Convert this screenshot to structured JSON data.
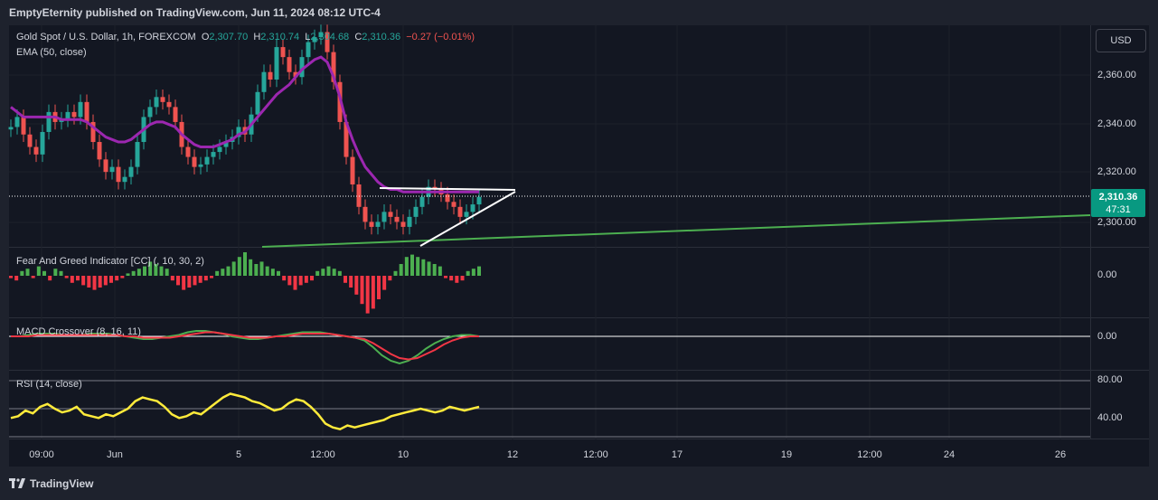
{
  "header": {
    "publisher_line": "EmptyEternity published on TradingView.com, Jun 11, 2024 08:12 UTC-4"
  },
  "symbol": {
    "name": "Gold Spot / U.S. Dollar, 1h, FOREXCOM",
    "o_label": "O",
    "o_value": "2,307.70",
    "h_label": "H",
    "h_value": "2,310.74",
    "l_label": "L",
    "l_value": "2,304.68",
    "c_label": "C",
    "c_value": "2,310.36",
    "change": "−0.27 (−0.01%)"
  },
  "indicators": {
    "ema": "EMA (50, close)",
    "fear_greed": "Fear And Greed Indicator [CC] (, 10, 30, 2)",
    "macd": "MACD Crossover (8, 16, 11)",
    "rsi": "RSI (14, close)"
  },
  "currency_button": "USD",
  "price_axis": {
    "ticks": [
      "2,360.00",
      "2,340.00",
      "2,320.00",
      "2,300.00"
    ],
    "current_price": "2,310.36",
    "countdown": "47:31"
  },
  "pane_axis": {
    "fear_greed_zero": "0.00",
    "macd_zero": "0.00",
    "rsi_high": "80.00",
    "rsi_low": "40.00"
  },
  "time_axis": {
    "labels": [
      "09:00",
      "Jun",
      "5",
      "12:00",
      "10",
      "12",
      "12:00",
      "17",
      "19",
      "12:00",
      "24",
      "26"
    ]
  },
  "footer": {
    "brand": "TradingView"
  },
  "colors": {
    "up": "#26a69a",
    "down": "#ef5350",
    "ema": "#9c27b0",
    "trendline": "#4caf50",
    "rsi": "#ffeb3b",
    "macd_line": "#4caf50",
    "signal_line": "#f23645",
    "fg_positive": "#4caf50",
    "fg_negative": "#f23645",
    "background": "#131722"
  },
  "chart_data": [
    {
      "type": "candlestick",
      "title": "Gold Spot / U.S. Dollar, 1h, FOREXCOM",
      "y_range": [
        2290,
        2378
      ],
      "series": [
        {
          "name": "Gold Spot / U.S. Dollar, 1h, FOREXCOM",
          "close": [
            2338,
            2342,
            2335,
            2330,
            2327,
            2336,
            2344,
            2340,
            2341,
            2344,
            2342,
            2348,
            2340,
            2332,
            2325,
            2320,
            2322,
            2316,
            2318,
            2322,
            2332,
            2342,
            2346,
            2350,
            2348,
            2346,
            2340,
            2330,
            2326,
            2322,
            2323,
            2326,
            2328,
            2330,
            2332,
            2334,
            2338,
            2335,
            2343,
            2352,
            2360,
            2357,
            2370,
            2366,
            2360,
            2358,
            2366,
            2372,
            2374,
            2376,
            2368,
            2356,
            2340,
            2326,
            2315,
            2306,
            2300,
            2298,
            2300,
            2304,
            2302,
            2300,
            2298,
            2302,
            2306,
            2310,
            2314,
            2313,
            2311,
            2308,
            2306,
            2302,
            2304,
            2307,
            2310
          ]
        },
        {
          "name": "EMA (50, close)",
          "values": [
            2346,
            2344,
            2342,
            2342,
            2342,
            2342,
            2342,
            2342,
            2341,
            2341,
            2341,
            2341,
            2340,
            2338,
            2336,
            2334,
            2333,
            2332,
            2332,
            2333,
            2335,
            2337,
            2339,
            2340,
            2340,
            2339,
            2338,
            2335,
            2333,
            2331,
            2330,
            2330,
            2330,
            2331,
            2332,
            2333,
            2335,
            2336,
            2339,
            2342,
            2345,
            2348,
            2351,
            2353,
            2355,
            2358,
            2361,
            2363,
            2365,
            2366,
            2364,
            2358,
            2350,
            2340,
            2333,
            2327,
            2322,
            2319,
            2316,
            2314,
            2313,
            2313,
            2312,
            2312,
            2312,
            2312,
            2312,
            2312,
            2312,
            2312,
            2312,
            2312,
            2312,
            2312,
            2312
          ]
        }
      ]
    },
    {
      "type": "bar",
      "title": "Fear And Greed Indicator [CC] (, 10, 30, 2)",
      "values": [
        -1,
        -2,
        2,
        3,
        -1,
        4,
        2,
        -2,
        3,
        2,
        -1,
        -3,
        -2,
        -4,
        -5,
        -6,
        -5,
        -4,
        -3,
        -2,
        -1,
        1,
        2,
        3,
        4,
        6,
        5,
        4,
        3,
        -2,
        -4,
        -6,
        -5,
        -4,
        -3,
        -2,
        -1,
        2,
        3,
        4,
        6,
        8,
        10,
        7,
        5,
        6,
        4,
        3,
        2,
        -2,
        -4,
        -6,
        -4,
        -3,
        -2,
        2,
        3,
        4,
        3,
        2,
        -3,
        -5,
        -8,
        -12,
        -16,
        -14,
        -10,
        -6,
        -2,
        2,
        5,
        8,
        9,
        8,
        7,
        6,
        5,
        4,
        -1,
        -2,
        -3,
        -2,
        2,
        3,
        4
      ],
      "zero_label": "0.00"
    },
    {
      "type": "line",
      "title": "MACD Crossover (8, 16, 11)",
      "series": [
        {
          "name": "MACD",
          "values": [
            0,
            0,
            1,
            2,
            2,
            2,
            1,
            1,
            1,
            2,
            2,
            2,
            1,
            0,
            -1,
            -2,
            -2,
            -1,
            0,
            1,
            3,
            4,
            4,
            3,
            2,
            0,
            -1,
            -2,
            -2,
            -1,
            0,
            1,
            2,
            3,
            3,
            3,
            2,
            1,
            0,
            -1,
            -3,
            -8,
            -14,
            -18,
            -20,
            -18,
            -14,
            -9,
            -5,
            -2,
            0,
            1,
            1,
            0
          ]
        },
        {
          "name": "Signal",
          "values": [
            0,
            0,
            0,
            1,
            1,
            1,
            1,
            1,
            1,
            1,
            1,
            1,
            1,
            0,
            0,
            -1,
            -1,
            -1,
            -1,
            0,
            1,
            2,
            3,
            3,
            2,
            1,
            0,
            -1,
            -1,
            -1,
            0,
            0,
            1,
            2,
            2,
            2,
            2,
            1,
            0,
            -1,
            -2,
            -5,
            -9,
            -13,
            -16,
            -17,
            -16,
            -13,
            -10,
            -6,
            -3,
            -1,
            0,
            0
          ]
        }
      ],
      "zero_label": "0.00"
    },
    {
      "type": "line",
      "title": "RSI (14, close)",
      "ylim": [
        20,
        80
      ],
      "series": [
        {
          "name": "RSI (14, close)",
          "values": [
            40,
            42,
            48,
            45,
            52,
            55,
            50,
            46,
            48,
            52,
            44,
            42,
            40,
            44,
            42,
            46,
            50,
            58,
            62,
            60,
            58,
            52,
            44,
            40,
            42,
            46,
            44,
            50,
            56,
            62,
            66,
            64,
            62,
            58,
            56,
            52,
            48,
            50,
            56,
            60,
            58,
            52,
            44,
            34,
            30,
            28,
            32,
            30,
            32,
            34,
            36,
            38,
            42,
            44,
            46,
            48,
            50,
            48,
            46,
            48,
            52,
            50,
            48,
            50,
            52
          ]
        }
      ],
      "tick_labels": [
        "80.00",
        "40.00"
      ]
    }
  ]
}
